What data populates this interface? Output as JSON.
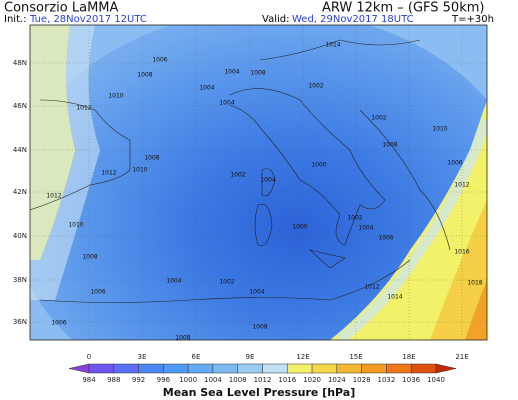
{
  "header": {
    "organization": "Consorzio LaMMA",
    "model": "ARW 12km – (GFS 50km)",
    "init_label": "Init.:",
    "init_value": "Tue, 28Nov2017 12UTC",
    "valid_label": "Valid:",
    "valid_value": "Wed, 29Nov2017 18UTC",
    "forecast_step": "T=+30h"
  },
  "map": {
    "latitude_labels": [
      "48N",
      "46N",
      "44N",
      "42N",
      "40N",
      "38N",
      "36N"
    ],
    "longitude_labels": [
      "0",
      "3E",
      "6E",
      "9E",
      "12E",
      "15E",
      "18E",
      "21E"
    ],
    "isobar_labels": [
      "1014",
      "1006",
      "1008",
      "1004",
      "1008",
      "1004",
      "1004",
      "1002",
      "1010",
      "1012",
      "1002",
      "1010",
      "1008",
      "1008",
      "1000",
      "1002",
      "1004",
      "1006",
      "1010",
      "1012",
      "1012",
      "1012",
      "1000",
      "1002",
      "1004",
      "1010",
      "1008",
      "1006",
      "1016",
      "1018",
      "1004",
      "1002",
      "1004",
      "1006",
      "1012",
      "1014",
      "1006",
      "1008",
      "1008"
    ]
  },
  "colorbar": {
    "labels": [
      "984",
      "988",
      "992",
      "996",
      "1000",
      "1004",
      "1008",
      "1012",
      "1016",
      "1020",
      "1024",
      "1028",
      "1032",
      "1036",
      "1040"
    ],
    "title": "Mean Sea Level Pressure [hPa]"
  }
}
